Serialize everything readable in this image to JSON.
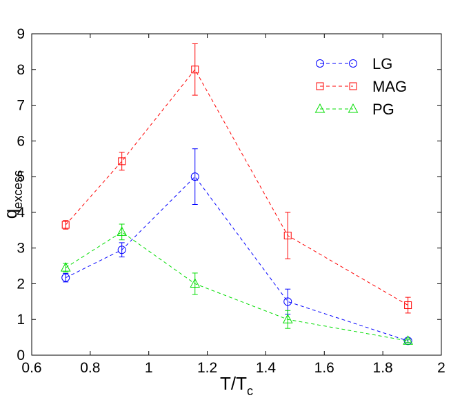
{
  "chart_data": {
    "type": "line",
    "title": "",
    "xlabel": {
      "main": "T/T",
      "sub": "c"
    },
    "ylabel": {
      "main": "q",
      "sub": "excess"
    },
    "xlim": [
      0.6,
      2.0
    ],
    "ylim": [
      0,
      9
    ],
    "xticks": [
      "0.6",
      "0.8",
      "1",
      "1.2",
      "1.4",
      "1.6",
      "1.8",
      "2"
    ],
    "yticks": [
      "0",
      "1",
      "2",
      "3",
      "4",
      "5",
      "6",
      "7",
      "8",
      "9"
    ],
    "legend_position": "top-right",
    "grid": false,
    "series": [
      {
        "name": "LG",
        "color": "#0000ff",
        "marker": "circle",
        "x": [
          0.716,
          0.908,
          1.158,
          1.475,
          1.886
        ],
        "y": [
          2.17,
          2.95,
          5.0,
          1.5,
          0.4
        ],
        "err": [
          0.12,
          0.2,
          0.78,
          0.35,
          0.05
        ]
      },
      {
        "name": "MAG",
        "color": "#ff0000",
        "marker": "square",
        "x": [
          0.716,
          0.908,
          1.158,
          1.475,
          1.886
        ],
        "y": [
          3.65,
          5.43,
          8.0,
          3.35,
          1.4
        ],
        "err": [
          0.12,
          0.25,
          0.72,
          0.65,
          0.22
        ]
      },
      {
        "name": "PG",
        "color": "#00dd00",
        "marker": "triangle",
        "x": [
          0.716,
          0.908,
          1.158,
          1.475,
          1.886
        ],
        "y": [
          2.45,
          3.45,
          2.0,
          1.0,
          0.4
        ],
        "err": [
          0.12,
          0.22,
          0.3,
          0.25,
          0.05
        ]
      }
    ]
  }
}
